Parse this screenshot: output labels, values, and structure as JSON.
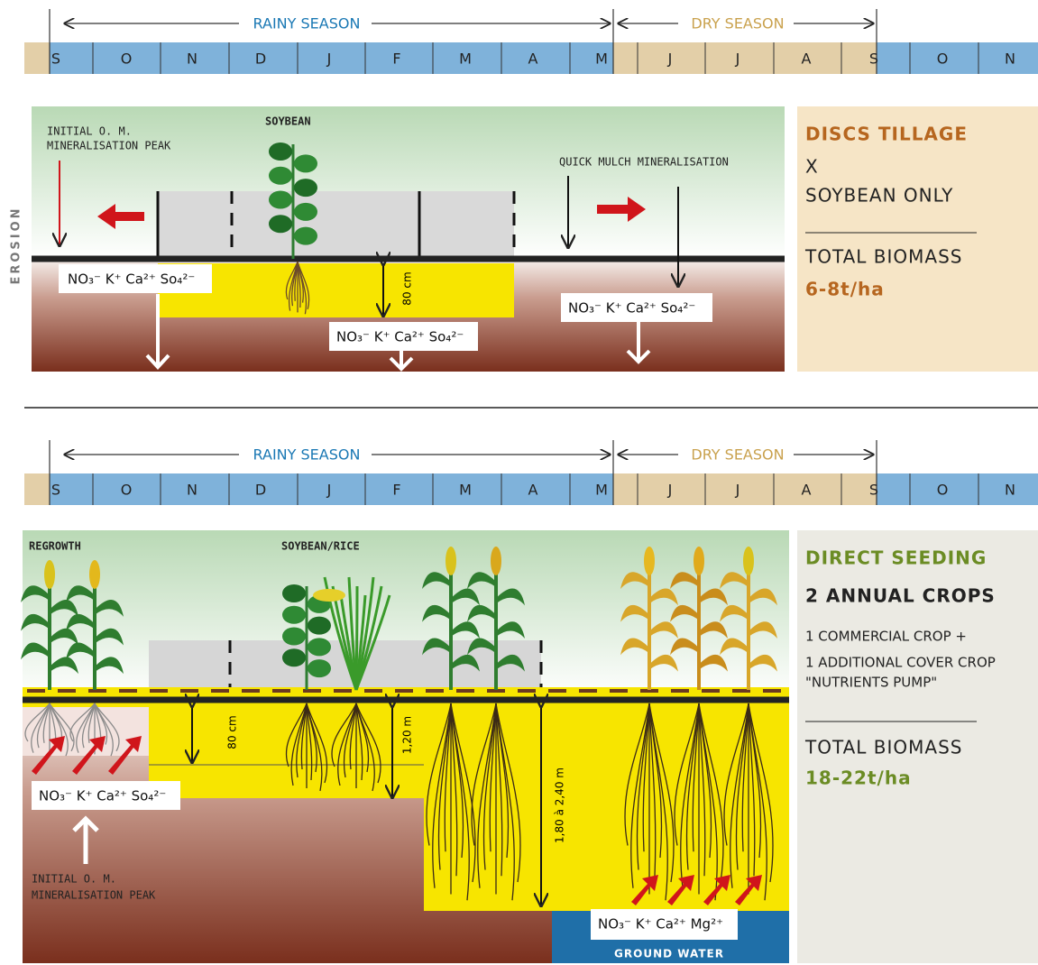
{
  "panels": [
    {
      "timeline": {
        "rainy": "RAINY SEASON",
        "dry": "DRY SEASON",
        "months": [
          "S",
          "O",
          "N",
          "D",
          "J",
          "F",
          "M",
          "A",
          "M",
          "J",
          "J",
          "A",
          "S",
          "O",
          "N"
        ]
      },
      "labels": {
        "initial_peak": [
          "INITIAL O. M.",
          "MINERALISATION PEAK"
        ],
        "crop": "SOYBEAN",
        "mulch": "QUICK MULCH MINERALISATION",
        "depth": "80 cm",
        "erosion": "EROSION",
        "nutrients": [
          "NO₃⁻ K⁺ Ca²⁺ So₄²⁻",
          "NO₃⁻ K⁺ Ca²⁺ So₄²⁻",
          "NO₃⁻ K⁺ Ca²⁺ So₄²⁻"
        ]
      },
      "side": {
        "title": "DISCS TILLAGE",
        "lines": [
          "X",
          "SOYBEAN ONLY"
        ],
        "biomass_label": "TOTAL BIOMASS",
        "biomass": "6-8t/ha"
      }
    },
    {
      "timeline": {
        "rainy": "RAINY SEASON",
        "dry": "DRY SEASON",
        "months": [
          "S",
          "O",
          "N",
          "D",
          "J",
          "F",
          "M",
          "A",
          "M",
          "J",
          "J",
          "A",
          "S",
          "O",
          "N"
        ]
      },
      "labels": {
        "regrowth": "REGROWTH",
        "crop": "SOYBEAN/RICE",
        "depths": [
          "80 cm",
          "1,20 m",
          "1,80 à 2,40 m"
        ],
        "nutrients": [
          "NO₃⁻ K⁺ Ca²⁺ So₄²⁻",
          "NO₃⁻ K⁺ Ca²⁺ Mg²⁺"
        ],
        "initial_peak": [
          "INITIAL O. M.",
          "MINERALISATION PEAK"
        ],
        "ground_water": "GROUND WATER"
      },
      "side": {
        "title": "DIRECT SEEDING",
        "subtitle": "2 ANNUAL CROPS",
        "lines": [
          "1 COMMERCIAL CROP +",
          "1 ADDITIONAL COVER CROP",
          "\"NUTRIENTS PUMP\""
        ],
        "biomass_label": "TOTAL BIOMASS",
        "biomass": "18-22t/ha"
      }
    }
  ]
}
